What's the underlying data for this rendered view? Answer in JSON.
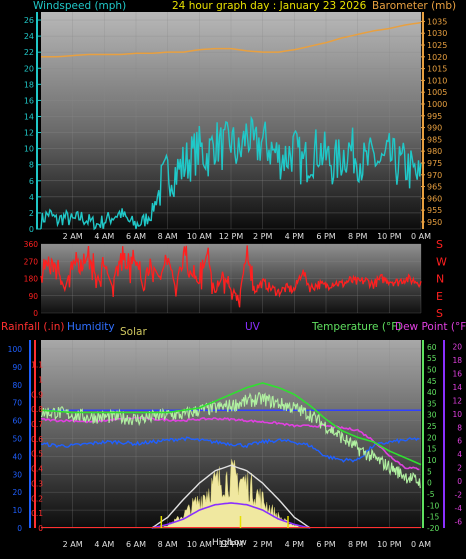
{
  "colors": {
    "wind": "#20c8c8",
    "baro": "#e8a040",
    "dir": "#ff2020",
    "humidity": "#2060ff",
    "rain": "#ff3030",
    "solar": "#d0c860",
    "uv": "#8a30ff",
    "temp": "#60e060",
    "dew": "#e040e0",
    "bluegrid": "#3040ff",
    "tempDaily": "#30e030",
    "dewDaily": "#c020c0",
    "solarFill": "#f0e8a0",
    "clearsky": "#e0e0e0"
  },
  "chart_data": [
    {
      "type": "line",
      "title": "24 hour graph day : January 23 2026",
      "left_axis_label": "Windspeed (mph)",
      "right_axis_label": "Barometer (mb)",
      "y_left_ticks": [
        "0",
        "2",
        "4",
        "6",
        "8",
        "10",
        "12",
        "14",
        "16",
        "18",
        "20",
        "22",
        "24",
        "26"
      ],
      "y_right_ticks": [
        "950",
        "955",
        "960",
        "965",
        "970",
        "975",
        "980",
        "985",
        "990",
        "995",
        "1000",
        "1005",
        "1010",
        "1015",
        "1020",
        "1025",
        "1030",
        "1035"
      ],
      "ylim_left": [
        0,
        27
      ],
      "ylim_right": [
        947,
        1039
      ],
      "x_ticks": [
        "2 AM",
        "4 AM",
        "6 AM",
        "8 AM",
        "10 AM",
        "12 PM",
        "2 PM",
        "4 PM",
        "6 PM",
        "8 PM",
        "10 PM",
        "0 AM"
      ],
      "xlim_hours": [
        0,
        24
      ],
      "grid": true,
      "series": [
        {
          "name": "Windspeed",
          "axis": "left",
          "x": [
            0,
            0.5,
            1,
            1.5,
            2,
            2.5,
            3,
            3.5,
            4,
            4.5,
            5,
            5.5,
            6,
            6.5,
            7,
            7.5,
            8,
            8.5,
            9,
            9.5,
            10,
            10.5,
            11,
            11.5,
            12,
            12.5,
            13,
            13.5,
            14,
            14.5,
            15,
            15.5,
            16,
            16.5,
            17,
            17.5,
            18,
            18.5,
            19,
            19.5,
            20,
            20.5,
            21,
            21.5,
            22,
            22.5,
            23,
            23.5,
            24
          ],
          "values": [
            1,
            2,
            1,
            1.5,
            1,
            1.5,
            1,
            0.5,
            1,
            1.5,
            2,
            1,
            0.5,
            1,
            2,
            5,
            7,
            7,
            8,
            9,
            10,
            9,
            11,
            10,
            11,
            9,
            12,
            10,
            11,
            10,
            9,
            9,
            10,
            8,
            9,
            10,
            9,
            8,
            9,
            10,
            9,
            8,
            9,
            8,
            9,
            8,
            8,
            7,
            6
          ]
        },
        {
          "name": "Barometer",
          "axis": "right",
          "x": [
            0,
            1,
            2,
            3,
            4,
            5,
            6,
            7,
            8,
            9,
            10,
            11,
            12,
            13,
            14,
            15,
            16,
            17,
            18,
            19,
            20,
            21,
            22,
            23,
            24
          ],
          "values": [
            1020,
            1020,
            1020.5,
            1021,
            1021,
            1021,
            1021.5,
            1021.5,
            1022,
            1022,
            1023,
            1023.5,
            1023.5,
            1022.5,
            1022,
            1022,
            1023,
            1024.5,
            1026,
            1028,
            1029.5,
            1031,
            1032,
            1033.5,
            1034.5
          ]
        }
      ]
    },
    {
      "type": "line",
      "title": "",
      "left_axis_label": "",
      "y_left_ticks": [
        "0",
        "90",
        "180",
        "270",
        "360"
      ],
      "ylim_left": [
        0,
        360
      ],
      "right_labels": [
        "S",
        "E",
        "N",
        "W",
        "S"
      ],
      "x_ticks": [],
      "xlim_hours": [
        0,
        24
      ],
      "series": [
        {
          "name": "Wind direction",
          "x": [
            0,
            0.5,
            1,
            1.5,
            2,
            2.5,
            3,
            3.5,
            4,
            4.5,
            5,
            5.5,
            6,
            6.5,
            7,
            7.5,
            8,
            8.5,
            9,
            9.5,
            10,
            10.5,
            11,
            11.5,
            12,
            12.5,
            13,
            13.5,
            14,
            14.5,
            15,
            15.5,
            16,
            16.5,
            17,
            17.5,
            18,
            18.5,
            19,
            19.5,
            20,
            20.5,
            21,
            21.5,
            22,
            22.5,
            23,
            23.5,
            24
          ],
          "values": [
            160,
            300,
            240,
            120,
            280,
            200,
            310,
            180,
            250,
            140,
            320,
            220,
            290,
            110,
            260,
            180,
            300,
            130,
            340,
            200,
            150,
            310,
            100,
            200,
            120,
            90,
            300,
            120,
            160,
            130,
            110,
            130,
            120,
            220,
            130,
            150,
            140,
            160,
            150,
            170,
            160,
            170,
            150,
            180,
            170,
            160,
            180,
            170,
            160
          ]
        }
      ]
    },
    {
      "type": "line",
      "title": "",
      "labels_top": [
        "Rainfall (.in)",
        "Humidity",
        "Solar",
        "UV",
        "Temperature (°F)",
        "Dew Point (°F)"
      ],
      "y_humidity_ticks": [
        "0",
        "10",
        "20",
        "30",
        "40",
        "50",
        "60",
        "70",
        "80",
        "90",
        "100"
      ],
      "y_rain_ticks": [
        "0",
        "0.1",
        "0.2",
        "0.3",
        "0.4",
        "0.5",
        "0.6",
        "0.7",
        "0.8",
        "0.9",
        "1",
        "1.1"
      ],
      "y_temp_ticks": [
        "-20",
        "-15",
        "-10",
        "-5",
        "0",
        "5",
        "10",
        "15",
        "20",
        "25",
        "30",
        "35",
        "40",
        "45",
        "50",
        "55",
        "60"
      ],
      "y_dew_ticks": [
        "-6",
        "-4",
        "-2",
        "0",
        "2",
        "4",
        "6",
        "8",
        "10",
        "12",
        "14",
        "16",
        "18",
        "20"
      ],
      "x_ticks": [
        "2 AM",
        "4 AM",
        "6 AM",
        "8 AM",
        "10 AM",
        "12 PM",
        "2 PM",
        "4 PM",
        "6 PM",
        "8 PM",
        "10 PM",
        "0 AM"
      ],
      "xlim_hours": [
        0,
        24
      ],
      "annotations": [
        "High",
        "Low"
      ],
      "series": [
        {
          "name": "Temperature",
          "x": [
            0,
            1,
            2,
            3,
            4,
            5,
            6,
            7,
            8,
            9,
            10,
            11,
            12,
            13,
            14,
            15,
            16,
            17,
            18,
            19,
            20,
            21,
            22,
            23,
            24
          ],
          "values": [
            31,
            31,
            30,
            29,
            29,
            29,
            28,
            29,
            30,
            30,
            32,
            33,
            34,
            36,
            37,
            35,
            33,
            30,
            25,
            20,
            15,
            11,
            7,
            3,
            0
          ]
        },
        {
          "name": "Temperature daily",
          "x": [
            0,
            2,
            4,
            6,
            8,
            10,
            11,
            12,
            13,
            14,
            15,
            16,
            17,
            18,
            19,
            20,
            21,
            22,
            23,
            24
          ],
          "values": [
            32,
            31,
            31,
            31,
            31,
            33,
            36,
            39,
            42,
            44,
            42,
            39,
            34,
            28,
            23,
            20,
            18,
            14,
            11,
            8
          ]
        },
        {
          "name": "Dew Point",
          "x": [
            0,
            1,
            2,
            3,
            4,
            5,
            6,
            7,
            8,
            9,
            10,
            11,
            12,
            13,
            14,
            15,
            16,
            17,
            18,
            19,
            20,
            21,
            22,
            23,
            24
          ],
          "values": [
            9.2,
            9.0,
            9.0,
            8.8,
            9.0,
            9.2,
            9.4,
            9.2,
            9.1,
            9.0,
            9.2,
            9.3,
            9.2,
            9.0,
            8.8,
            8.6,
            8.2,
            8.2,
            8.2,
            7.9,
            7.6,
            6.0,
            3.8,
            2.0,
            1.8
          ]
        },
        {
          "name": "Humidity",
          "x": [
            0,
            1,
            2,
            3,
            4,
            5,
            6,
            7,
            8,
            9,
            10,
            11,
            12,
            13,
            14,
            15,
            16,
            17,
            18,
            19,
            20,
            21,
            22,
            23,
            24
          ],
          "values": [
            47,
            46,
            46,
            47,
            48,
            48,
            47,
            48,
            49,
            50,
            49,
            48,
            47,
            46,
            48,
            49,
            48,
            46,
            40,
            38,
            38,
            46,
            48,
            49,
            50
          ]
        },
        {
          "name": "Solar",
          "x": [
            7,
            7.5,
            8,
            8.5,
            9,
            9.5,
            10,
            10.5,
            11,
            11.5,
            12,
            12.5,
            13,
            13.5,
            14,
            14.5,
            15,
            15.5,
            16,
            16.5,
            17
          ],
          "values": [
            0,
            0.2,
            2,
            5,
            9,
            14,
            19,
            25,
            30,
            33,
            34,
            34,
            30,
            25,
            19,
            13,
            8,
            4,
            2,
            0.5,
            0
          ]
        },
        {
          "name": "Solar clear sky",
          "x": [
            7,
            8,
            9,
            10,
            11,
            12,
            13,
            14,
            15,
            16,
            17
          ],
          "values": [
            0,
            6,
            16,
            25,
            32,
            35,
            32,
            25,
            16,
            6,
            0
          ]
        },
        {
          "name": "UV",
          "x": [
            7,
            8,
            9,
            10,
            11,
            12,
            13,
            14,
            15,
            16,
            17
          ],
          "values": [
            0,
            2,
            5,
            10,
            13,
            14,
            13,
            10,
            5,
            2,
            0
          ]
        }
      ]
    }
  ]
}
